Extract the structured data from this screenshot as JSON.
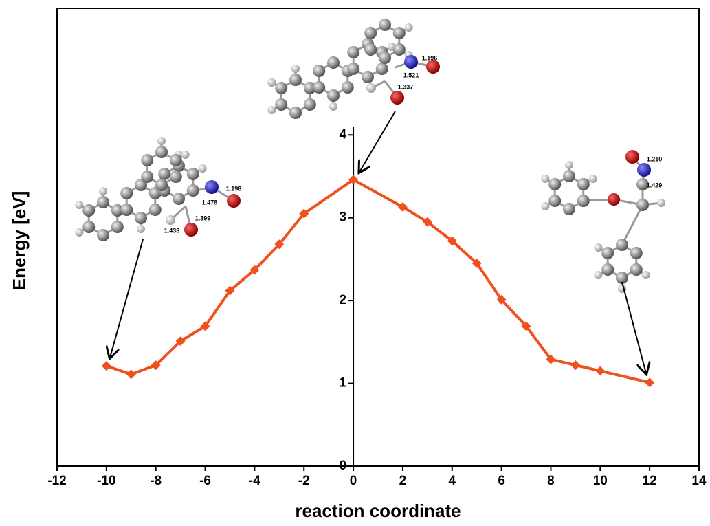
{
  "chart_data": {
    "type": "line",
    "x_label": "reaction coordinate",
    "y_label": "Energy [eV]",
    "x": [
      -10,
      -9,
      -8,
      -7,
      -6,
      -5,
      -4,
      -3,
      -2,
      0,
      2,
      3,
      4,
      5,
      6,
      7,
      8,
      9,
      10,
      12
    ],
    "series": [
      {
        "color": "#f0501e",
        "values": [
          1.21,
          1.11,
          1.22,
          1.51,
          1.69,
          2.12,
          2.37,
          2.68,
          3.05,
          3.46,
          3.13,
          2.95,
          2.72,
          2.45,
          2.01,
          1.69,
          1.29,
          1.22,
          1.15,
          1.01
        ]
      }
    ],
    "xlim": [
      -12,
      14
    ],
    "xticks": [
      -12,
      -10,
      -8,
      -6,
      -4,
      -2,
      0,
      2,
      4,
      6,
      8,
      10,
      12,
      14
    ],
    "ylim": [
      0,
      5.53
    ],
    "yticks": [
      0,
      1,
      2,
      3,
      4
    ],
    "annotations": [
      "1.198",
      "1.478",
      "1.399",
      "1.438",
      "1.196",
      "1.521",
      "1.337",
      "1.210",
      "1.429"
    ]
  }
}
